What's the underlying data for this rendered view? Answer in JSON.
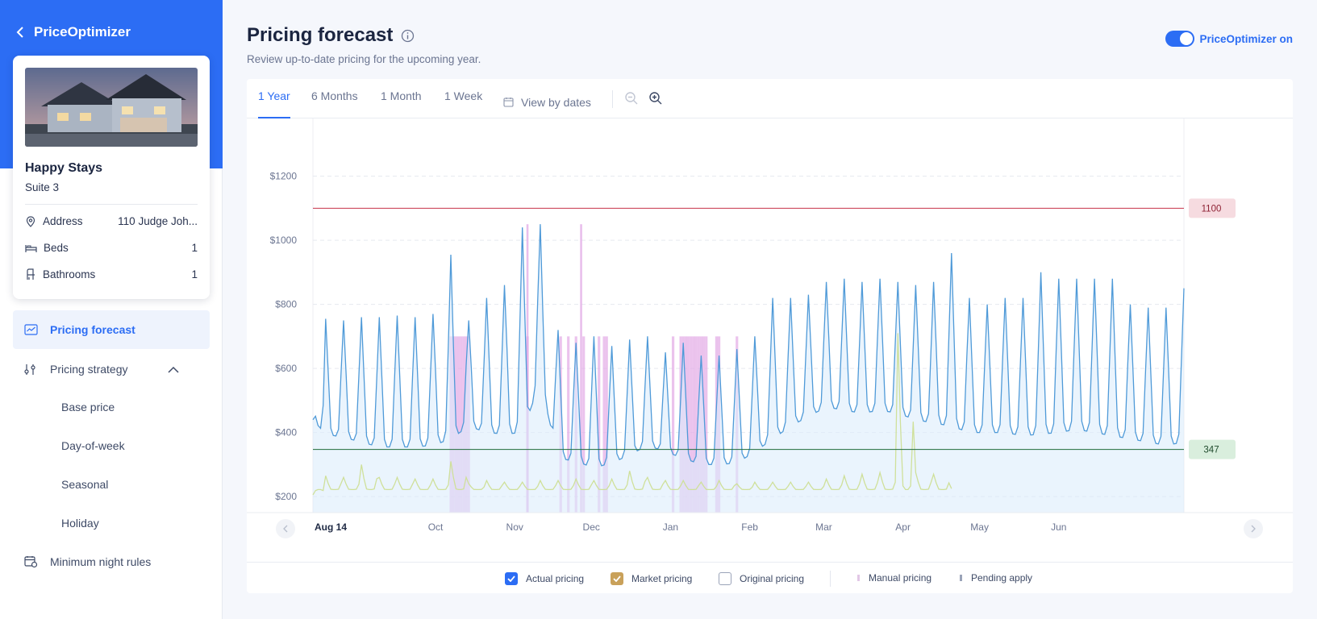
{
  "sidebar": {
    "back_label": "PriceOptimizer",
    "property": {
      "name": "Happy Stays",
      "unit": "Suite 3",
      "rows": [
        {
          "label": "Address",
          "value": "110 Judge Joh...",
          "icon": "location-pin-icon"
        },
        {
          "label": "Beds",
          "value": "1",
          "icon": "bed-icon"
        },
        {
          "label": "Bathrooms",
          "value": "1",
          "icon": "bathtub-icon"
        }
      ]
    },
    "nav": {
      "pricing_forecast": "Pricing forecast",
      "pricing_strategy": "Pricing strategy",
      "sub_items": [
        "Base price",
        "Day-of-week",
        "Seasonal",
        "Holiday"
      ],
      "minimum_night_rules": "Minimum night rules"
    }
  },
  "header": {
    "title": "Pricing forecast",
    "subtitle": "Review up-to-date pricing for the upcoming year.",
    "toggle_label": "PriceOptimizer on",
    "toggle_on": true
  },
  "tabs": {
    "items": [
      "1 Year",
      "6 Months",
      "1 Month",
      "1 Week"
    ],
    "active": "1 Year",
    "view_by_dates": "View by dates"
  },
  "legend": {
    "actual": "Actual pricing",
    "market": "Market pricing",
    "original": "Original pricing",
    "manual": "Manual pricing",
    "pending": "Pending apply"
  },
  "colors": {
    "accent": "#2c6df4",
    "actual": "#4f9ad8",
    "actual_fill": "#dcecfb",
    "market": "#cfe09a",
    "manual": "#e2a9e6",
    "max_line": "#c7334a",
    "min_line": "#1f6b3a"
  },
  "chart_data": {
    "type": "line",
    "x_start": "2023-08-14",
    "x_end": "2024-07-20",
    "x_ticks": [
      "Aug 14",
      "Oct",
      "Nov",
      "Dec",
      "Jan",
      "Feb",
      "Mar",
      "Apr",
      "May",
      "Jun"
    ],
    "y_ticks": [
      "$200",
      "$400",
      "$600",
      "$800",
      "$1000",
      "$1200"
    ],
    "ylim": [
      150,
      1380
    ],
    "grid": true,
    "thresholds": [
      {
        "label": "1100",
        "value": 1100,
        "kind": "max"
      },
      {
        "label": "347",
        "value": 347,
        "kind": "min"
      }
    ],
    "series": [
      {
        "name": "Actual pricing",
        "peaks": [
          {
            "date": "2023-08-14",
            "low": 440,
            "high": 440
          },
          {
            "date": "2023-08-19",
            "low": 395,
            "high": 755
          },
          {
            "date": "2023-08-26",
            "low": 385,
            "high": 750
          },
          {
            "date": "2023-09-02",
            "low": 370,
            "high": 760
          },
          {
            "date": "2023-09-09",
            "low": 355,
            "high": 760
          },
          {
            "date": "2023-09-16",
            "low": 355,
            "high": 765
          },
          {
            "date": "2023-09-23",
            "low": 355,
            "high": 760
          },
          {
            "date": "2023-09-30",
            "low": 360,
            "high": 770
          },
          {
            "date": "2023-10-07",
            "low": 380,
            "high": 955
          },
          {
            "date": "2023-10-14",
            "low": 420,
            "high": 750
          },
          {
            "date": "2023-10-21",
            "low": 400,
            "high": 820
          },
          {
            "date": "2023-10-28",
            "low": 395,
            "high": 860
          },
          {
            "date": "2023-11-04",
            "low": 400,
            "high": 1040
          },
          {
            "date": "2023-11-11",
            "low": 560,
            "high": 1050
          },
          {
            "date": "2023-11-18",
            "low": 320,
            "high": 720
          },
          {
            "date": "2023-11-25",
            "low": 310,
            "high": 680
          },
          {
            "date": "2023-12-02",
            "low": 290,
            "high": 700
          },
          {
            "date": "2023-12-09",
            "low": 305,
            "high": 670
          },
          {
            "date": "2023-12-16",
            "low": 330,
            "high": 690
          },
          {
            "date": "2023-12-23",
            "low": 360,
            "high": 700
          },
          {
            "date": "2023-12-30",
            "low": 340,
            "high": 650
          },
          {
            "date": "2024-01-06",
            "low": 320,
            "high": 680
          },
          {
            "date": "2024-01-13",
            "low": 300,
            "high": 640
          },
          {
            "date": "2024-01-20",
            "low": 300,
            "high": 640
          },
          {
            "date": "2024-01-27",
            "low": 305,
            "high": 660
          },
          {
            "date": "2024-02-03",
            "low": 340,
            "high": 700
          },
          {
            "date": "2024-02-10",
            "low": 380,
            "high": 820
          },
          {
            "date": "2024-02-17",
            "low": 420,
            "high": 820
          },
          {
            "date": "2024-02-24",
            "low": 450,
            "high": 830
          },
          {
            "date": "2024-03-02",
            "low": 480,
            "high": 870
          },
          {
            "date": "2024-03-09",
            "low": 470,
            "high": 880
          },
          {
            "date": "2024-03-16",
            "low": 460,
            "high": 870
          },
          {
            "date": "2024-03-23",
            "low": 470,
            "high": 880
          },
          {
            "date": "2024-03-30",
            "low": 460,
            "high": 870
          },
          {
            "date": "2024-04-06",
            "low": 440,
            "high": 860
          },
          {
            "date": "2024-04-13",
            "low": 430,
            "high": 870
          },
          {
            "date": "2024-04-20",
            "low": 420,
            "high": 960
          },
          {
            "date": "2024-04-27",
            "low": 400,
            "high": 820
          },
          {
            "date": "2024-05-04",
            "low": 400,
            "high": 800
          },
          {
            "date": "2024-05-11",
            "low": 400,
            "high": 820
          },
          {
            "date": "2024-05-18",
            "low": 390,
            "high": 820
          },
          {
            "date": "2024-05-25",
            "low": 395,
            "high": 900
          },
          {
            "date": "2024-06-01",
            "low": 400,
            "high": 880
          },
          {
            "date": "2024-06-08",
            "low": 410,
            "high": 880
          },
          {
            "date": "2024-06-15",
            "low": 400,
            "high": 880
          },
          {
            "date": "2024-06-22",
            "low": 390,
            "high": 880
          },
          {
            "date": "2024-06-29",
            "low": 380,
            "high": 800
          },
          {
            "date": "2024-07-06",
            "low": 370,
            "high": 790
          },
          {
            "date": "2024-07-13",
            "low": 360,
            "high": 790
          },
          {
            "date": "2024-07-20",
            "low": 370,
            "high": 850
          }
        ]
      },
      {
        "name": "Market pricing",
        "points": [
          {
            "date": "2023-08-14",
            "value": 205
          },
          {
            "date": "2023-08-19",
            "value": 265
          },
          {
            "date": "2023-08-26",
            "value": 260
          },
          {
            "date": "2023-09-02",
            "value": 300
          },
          {
            "date": "2023-09-09",
            "value": 260
          },
          {
            "date": "2023-09-16",
            "value": 260
          },
          {
            "date": "2023-09-23",
            "value": 255
          },
          {
            "date": "2023-09-30",
            "value": 255
          },
          {
            "date": "2023-10-07",
            "value": 310
          },
          {
            "date": "2023-10-14",
            "value": 240
          },
          {
            "date": "2023-10-21",
            "value": 250
          },
          {
            "date": "2023-10-28",
            "value": 245
          },
          {
            "date": "2023-11-04",
            "value": 245
          },
          {
            "date": "2023-11-11",
            "value": 250
          },
          {
            "date": "2023-11-18",
            "value": 250
          },
          {
            "date": "2023-11-25",
            "value": 255
          },
          {
            "date": "2023-12-02",
            "value": 250
          },
          {
            "date": "2023-12-09",
            "value": 255
          },
          {
            "date": "2023-12-16",
            "value": 280
          },
          {
            "date": "2023-12-23",
            "value": 260
          },
          {
            "date": "2023-12-30",
            "value": 250
          },
          {
            "date": "2024-01-06",
            "value": 250
          },
          {
            "date": "2024-01-13",
            "value": 245
          },
          {
            "date": "2024-01-20",
            "value": 250
          },
          {
            "date": "2024-01-27",
            "value": 240
          },
          {
            "date": "2024-02-03",
            "value": 245
          },
          {
            "date": "2024-02-10",
            "value": 245
          },
          {
            "date": "2024-02-17",
            "value": 245
          },
          {
            "date": "2024-02-24",
            "value": 245
          },
          {
            "date": "2024-03-02",
            "value": 255
          },
          {
            "date": "2024-03-09",
            "value": 265
          },
          {
            "date": "2024-03-16",
            "value": 270
          },
          {
            "date": "2024-03-23",
            "value": 275
          },
          {
            "date": "2024-03-30",
            "value": 710
          },
          {
            "date": "2024-04-06",
            "value": 275
          },
          {
            "date": "2024-04-13",
            "value": 270
          },
          {
            "date": "2024-04-20",
            "value": 225
          }
        ]
      }
    ],
    "manual_pricing_dates": [
      "2023-10-07",
      "2023-10-08",
      "2023-10-09",
      "2023-10-10",
      "2023-10-11",
      "2023-10-12",
      "2023-10-13",
      "2023-10-14",
      "2023-11-06",
      "2023-11-19",
      "2023-11-22",
      "2023-11-25",
      "2023-11-28",
      "2023-12-04",
      "2023-12-06",
      "2023-12-07",
      "2024-01-02",
      "2024-01-05",
      "2024-01-06",
      "2024-01-07",
      "2024-01-08",
      "2024-01-09",
      "2024-01-10",
      "2024-01-11",
      "2024-01-12",
      "2024-01-13",
      "2024-01-14",
      "2024-01-15",
      "2024-01-19",
      "2024-01-20",
      "2024-01-27"
    ],
    "manual_pricing_tall_dates": [
      "2023-11-06",
      "2023-11-27"
    ]
  }
}
